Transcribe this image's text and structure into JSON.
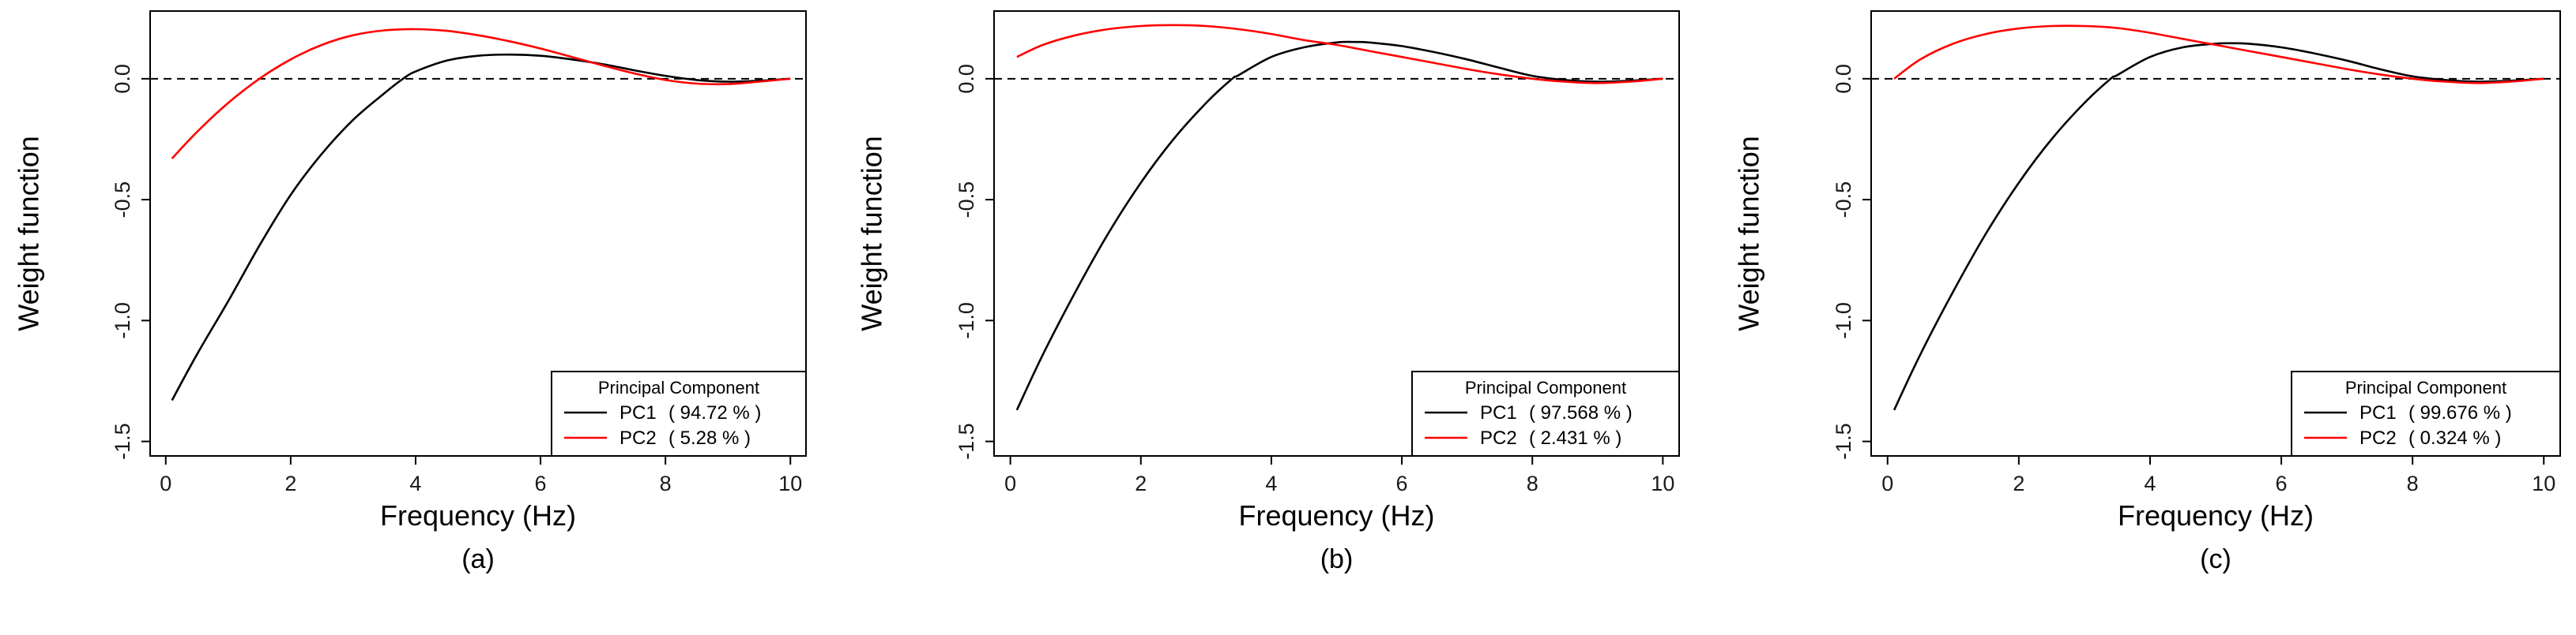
{
  "chart_data": [
    {
      "type": "line",
      "caption": "(a)",
      "xlabel": "Frequency (Hz)",
      "ylabel": "Weight function",
      "xlim": [
        -0.25,
        10.25
      ],
      "ylim": [
        -1.56,
        0.28
      ],
      "xticks": [
        0,
        2,
        4,
        6,
        8,
        10
      ],
      "xtick_labels": [
        "0",
        "2",
        "4",
        "6",
        "8",
        "10"
      ],
      "yticks": [
        0.0,
        -0.5,
        -1.0,
        -1.5
      ],
      "ytick_labels": [
        "0.0",
        "-0.5",
        "-1.0",
        "-1.5"
      ],
      "reference_line": {
        "y": 0,
        "style": "dashed"
      },
      "legend": {
        "title": "Principal Component",
        "position": "bottom-right"
      },
      "series": [
        {
          "name": "PC1",
          "pct_label": "( 94.72 % )",
          "color": "#000000",
          "x": [
            0.1,
            0.5,
            1,
            1.5,
            2,
            2.5,
            3,
            3.5,
            3.8,
            4,
            4.5,
            5,
            5.5,
            6,
            6.5,
            7,
            7.5,
            8,
            8.5,
            9,
            9.5,
            10
          ],
          "y": [
            -1.33,
            -1.14,
            -0.92,
            -0.69,
            -0.48,
            -0.31,
            -0.17,
            -0.06,
            0.0,
            0.03,
            0.075,
            0.095,
            0.1,
            0.095,
            0.08,
            0.06,
            0.035,
            0.012,
            -0.005,
            -0.012,
            -0.008,
            0.0
          ]
        },
        {
          "name": "PC2",
          "pct_label": "( 5.28 % )",
          "color": "#ff0000",
          "x": [
            0.1,
            0.5,
            1,
            1.5,
            2,
            2.5,
            3,
            3.5,
            4,
            4.5,
            5,
            5.5,
            6,
            6.5,
            7,
            7.5,
            8,
            8.5,
            9,
            9.5,
            10
          ],
          "y": [
            -0.33,
            -0.22,
            -0.1,
            0.0,
            0.08,
            0.14,
            0.18,
            0.2,
            0.205,
            0.198,
            0.18,
            0.155,
            0.125,
            0.09,
            0.055,
            0.022,
            -0.005,
            -0.02,
            -0.022,
            -0.012,
            0.0
          ]
        }
      ]
    },
    {
      "type": "line",
      "caption": "(b)",
      "xlabel": "Frequency (Hz)",
      "ylabel": "Weight function",
      "xlim": [
        -0.25,
        10.25
      ],
      "ylim": [
        -1.56,
        0.28
      ],
      "xticks": [
        0,
        2,
        4,
        6,
        8,
        10
      ],
      "xtick_labels": [
        "0",
        "2",
        "4",
        "6",
        "8",
        "10"
      ],
      "yticks": [
        0.0,
        -0.5,
        -1.0,
        -1.5
      ],
      "ytick_labels": [
        "0.0",
        "-0.5",
        "-1.0",
        "-1.5"
      ],
      "reference_line": {
        "y": 0,
        "style": "dashed"
      },
      "legend": {
        "title": "Principal Component",
        "position": "bottom-right"
      },
      "series": [
        {
          "name": "PC1",
          "pct_label": "( 97.568 % )",
          "color": "#000000",
          "x": [
            0.1,
            0.5,
            1,
            1.5,
            2,
            2.5,
            3,
            3.4,
            3.5,
            4,
            4.5,
            5,
            5.3,
            5.5,
            6,
            6.5,
            7,
            7.5,
            8,
            8.5,
            9,
            9.5,
            10
          ],
          "y": [
            -1.37,
            -1.14,
            -0.88,
            -0.64,
            -0.43,
            -0.25,
            -0.1,
            0.0,
            0.015,
            0.09,
            0.13,
            0.15,
            0.152,
            0.15,
            0.135,
            0.11,
            0.08,
            0.045,
            0.012,
            -0.005,
            -0.012,
            -0.008,
            0.0
          ]
        },
        {
          "name": "PC2",
          "pct_label": "( 2.431 % )",
          "color": "#ff0000",
          "x": [
            0.1,
            0.5,
            1,
            1.5,
            2,
            2.5,
            3,
            3.5,
            4,
            4.5,
            5,
            5.5,
            6,
            6.5,
            7,
            7.5,
            8,
            8.5,
            9,
            9.5,
            10
          ],
          "y": [
            0.09,
            0.14,
            0.18,
            0.205,
            0.218,
            0.222,
            0.218,
            0.205,
            0.185,
            0.16,
            0.14,
            0.115,
            0.09,
            0.065,
            0.04,
            0.018,
            0.0,
            -0.012,
            -0.018,
            -0.012,
            0.0
          ]
        }
      ]
    },
    {
      "type": "line",
      "caption": "(c)",
      "xlabel": "Frequency (Hz)",
      "ylabel": "Weight function",
      "xlim": [
        -0.25,
        10.25
      ],
      "ylim": [
        -1.56,
        0.28
      ],
      "xticks": [
        0,
        2,
        4,
        6,
        8,
        10
      ],
      "xtick_labels": [
        "0",
        "2",
        "4",
        "6",
        "8",
        "10"
      ],
      "yticks": [
        0.0,
        -0.5,
        -1.0,
        -1.5
      ],
      "ytick_labels": [
        "0.0",
        "-0.5",
        "-1.0",
        "-1.5"
      ],
      "reference_line": {
        "y": 0,
        "style": "dashed"
      },
      "legend": {
        "title": "Principal Component",
        "position": "bottom-right"
      },
      "series": [
        {
          "name": "PC1",
          "pct_label": "( 99.676 % )",
          "color": "#000000",
          "x": [
            0.1,
            0.5,
            1,
            1.5,
            2,
            2.5,
            3,
            3.4,
            3.5,
            4,
            4.5,
            5,
            5.2,
            5.5,
            6,
            6.5,
            7,
            7.5,
            8,
            8.5,
            9,
            9.5,
            10
          ],
          "y": [
            -1.37,
            -1.14,
            -0.88,
            -0.64,
            -0.43,
            -0.25,
            -0.1,
            0.0,
            0.015,
            0.09,
            0.13,
            0.145,
            0.147,
            0.145,
            0.13,
            0.105,
            0.075,
            0.04,
            0.01,
            -0.005,
            -0.012,
            -0.008,
            0.0
          ]
        },
        {
          "name": "PC2",
          "pct_label": "( 0.324 % )",
          "color": "#ff0000",
          "x": [
            0.1,
            0.5,
            1,
            1.5,
            2,
            2.5,
            3,
            3.5,
            4,
            4.5,
            5,
            5.5,
            6,
            6.5,
            7,
            7.5,
            8,
            8.5,
            9,
            9.5,
            10
          ],
          "y": [
            0.0,
            0.08,
            0.145,
            0.185,
            0.208,
            0.218,
            0.218,
            0.21,
            0.19,
            0.165,
            0.14,
            0.115,
            0.09,
            0.065,
            0.04,
            0.018,
            0.0,
            -0.012,
            -0.018,
            -0.012,
            0.0
          ]
        }
      ]
    }
  ]
}
